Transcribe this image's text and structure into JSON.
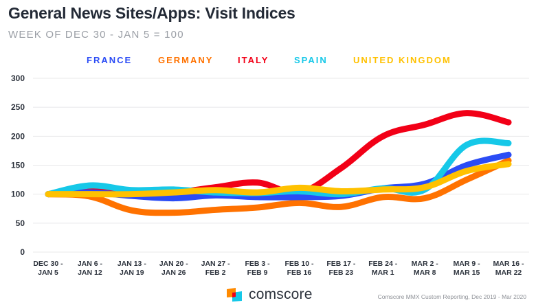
{
  "chart_data": {
    "type": "line",
    "title": "General News Sites/Apps: Visit Indices",
    "subtitle": "WEEK OF DEC 30 - JAN 5 = 100",
    "xlabel": "",
    "ylabel": "",
    "ylim": [
      0,
      300
    ],
    "yticks": [
      0,
      50,
      100,
      150,
      200,
      250,
      300
    ],
    "grid": true,
    "legend_position": "top-center",
    "categories": [
      [
        "DEC 30 -",
        "JAN 5"
      ],
      [
        "JAN 6 -",
        "JAN 12"
      ],
      [
        "JAN 13 -",
        "JAN 19"
      ],
      [
        "JAN 20 -",
        "JAN 26"
      ],
      [
        "JAN 27 -",
        "FEB 2"
      ],
      [
        "FEB 3 -",
        "FEB 9"
      ],
      [
        "FEB 10 -",
        "FEB 16"
      ],
      [
        "FEB 17 -",
        "FEB 23"
      ],
      [
        "FEB 24 -",
        "MAR 1"
      ],
      [
        "MAR 2 -",
        "MAR 8"
      ],
      [
        "MAR 9 -",
        "MAR 15"
      ],
      [
        "MAR 16 -",
        "MAR 22"
      ]
    ],
    "series": [
      {
        "name": "FRANCE",
        "color": "#2b4cf5",
        "values": [
          100,
          103,
          97,
          93,
          98,
          95,
          95,
          97,
          110,
          118,
          150,
          168
        ]
      },
      {
        "name": "GERMANY",
        "color": "#ff7200",
        "values": [
          100,
          96,
          72,
          68,
          73,
          77,
          85,
          78,
          95,
          93,
          125,
          158
        ]
      },
      {
        "name": "ITALY",
        "color": "#f20017",
        "values": [
          100,
          108,
          103,
          103,
          112,
          120,
          103,
          145,
          200,
          220,
          240,
          224
        ]
      },
      {
        "name": "SPAIN",
        "color": "#16c8e8",
        "values": [
          100,
          115,
          107,
          108,
          103,
          102,
          105,
          100,
          110,
          108,
          185,
          188
        ]
      },
      {
        "name": "UNITED KINGDOM",
        "color": "#ffc100",
        "values": [
          100,
          100,
          100,
          103,
          107,
          103,
          111,
          105,
          108,
          112,
          140,
          152
        ]
      }
    ],
    "draw_order": [
      "ITALY",
      "GERMANY",
      "FRANCE",
      "SPAIN",
      "UNITED KINGDOM"
    ]
  },
  "footer": {
    "brand": "comscore",
    "source": "Comscore MMX Custom Reporting, Dec 2019 - Mar 2020",
    "logo_colors": {
      "orange": "#ff8a00",
      "red": "#f20017",
      "cyan": "#16c8e8"
    }
  }
}
